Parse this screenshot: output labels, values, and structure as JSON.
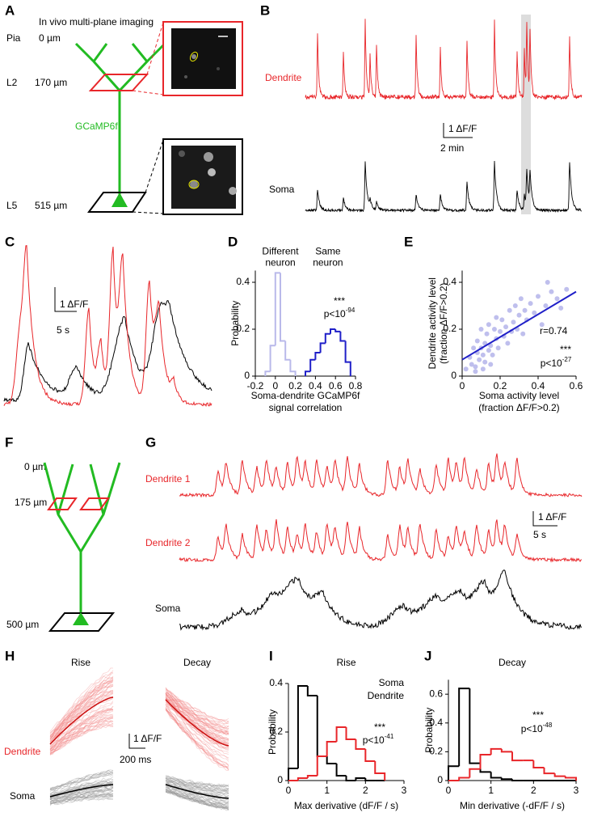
{
  "panels": {
    "A": {
      "letter": "A",
      "title": "In vivo multi-plane imaging",
      "layers": [
        {
          "name": "Pia",
          "depth": "0 µm"
        },
        {
          "name": "L2",
          "depth": "170 µm"
        },
        {
          "name": "L5",
          "depth": "515 µm"
        }
      ],
      "indicator": "GCaMP6f"
    },
    "B": {
      "letter": "B",
      "traces": [
        "Dendrite",
        "Soma"
      ],
      "scale_y": "1 ΔF/F",
      "scale_x": "2 min"
    },
    "C": {
      "letter": "C",
      "scale_y": "1 ΔF/F",
      "scale_x": "5 s"
    },
    "D": {
      "letter": "D"
    },
    "E": {
      "letter": "E"
    },
    "F": {
      "letter": "F",
      "depths": [
        "0 µm",
        "175 µm",
        "500 µm"
      ]
    },
    "G": {
      "letter": "G",
      "traces": [
        "Dendrite 1",
        "Dendrite 2",
        "Soma"
      ],
      "scale_y": "1 ΔF/F",
      "scale_x": "5 s"
    },
    "H": {
      "letter": "H",
      "columns": [
        "Rise",
        "Decay"
      ],
      "traces": [
        "Dendrite",
        "Soma"
      ],
      "scale_y": "1 ΔF/F",
      "scale_x": "200 ms"
    },
    "I": {
      "letter": "I"
    },
    "J": {
      "letter": "J"
    }
  },
  "chart_data": [
    {
      "type": "histogram",
      "xlabel": [
        "Soma-dendrite GCaMP6f",
        "signal correlation"
      ],
      "ylabel": "Probability",
      "xlim": [
        -0.2,
        0.8
      ],
      "xticks": [
        -0.2,
        0,
        0.2,
        0.4,
        0.6,
        0.8
      ],
      "ylim": [
        0,
        0.45
      ],
      "yticks": [
        0,
        0.2,
        0.4
      ],
      "legend": "above",
      "series": [
        {
          "name": "Different neuron",
          "color": "#b9b9ea",
          "bins": [
            -0.1,
            -0.05,
            0,
            0.05,
            0.1,
            0.15,
            0.2
          ],
          "values": [
            0.02,
            0.13,
            0.44,
            0.15,
            0.07,
            0.02
          ]
        },
        {
          "name": "Same neuron",
          "color": "#1f1fc8",
          "bins": [
            0.3,
            0.35,
            0.4,
            0.45,
            0.5,
            0.55,
            0.6,
            0.65,
            0.7,
            0.75
          ],
          "values": [
            0.02,
            0.07,
            0.1,
            0.14,
            0.18,
            0.2,
            0.19,
            0.15,
            0.06
          ]
        }
      ],
      "annotation": {
        "stars": "***",
        "p": "p<10",
        "exp": "-94"
      }
    },
    {
      "type": "scatter",
      "xlabel": [
        "Soma activity level",
        "(fraction ΔF/F>0.2)"
      ],
      "ylabel": [
        "Dendrite activity level",
        "(fraction ΔF/F>0.2)"
      ],
      "xlim": [
        0,
        0.6
      ],
      "xticks": [
        0,
        0.2,
        0.4,
        0.6
      ],
      "ylim": [
        0,
        0.45
      ],
      "yticks": [
        0,
        0.2,
        0.4
      ],
      "color": "#b4b4ea",
      "fit_color": "#1f1fc8",
      "x": [
        0.02,
        0.04,
        0.05,
        0.06,
        0.07,
        0.08,
        0.08,
        0.09,
        0.1,
        0.1,
        0.11,
        0.12,
        0.12,
        0.13,
        0.14,
        0.14,
        0.15,
        0.16,
        0.17,
        0.18,
        0.18,
        0.19,
        0.2,
        0.21,
        0.22,
        0.23,
        0.24,
        0.25,
        0.26,
        0.27,
        0.28,
        0.29,
        0.3,
        0.31,
        0.32,
        0.33,
        0.34,
        0.36,
        0.38,
        0.4,
        0.42,
        0.44,
        0.45,
        0.47,
        0.5,
        0.52,
        0.55,
        0.07,
        0.11,
        0.15
      ],
      "values": [
        0.03,
        0.08,
        0.05,
        0.12,
        0.04,
        0.1,
        0.15,
        0.07,
        0.12,
        0.2,
        0.09,
        0.14,
        0.06,
        0.18,
        0.11,
        0.22,
        0.13,
        0.09,
        0.2,
        0.16,
        0.25,
        0.12,
        0.19,
        0.24,
        0.17,
        0.21,
        0.14,
        0.28,
        0.19,
        0.23,
        0.3,
        0.2,
        0.26,
        0.33,
        0.18,
        0.28,
        0.24,
        0.31,
        0.27,
        0.34,
        0.22,
        0.3,
        0.4,
        0.36,
        0.33,
        0.29,
        0.37,
        0.02,
        0.03,
        0.05
      ],
      "fit": {
        "x": [
          0,
          0.6
        ],
        "y": [
          0.07,
          0.36
        ]
      },
      "annotation": {
        "r": "r=0.74",
        "stars": "***",
        "p": "p<10",
        "exp": "-27"
      }
    },
    {
      "type": "histogram",
      "title": "Rise",
      "xlabel": "Max derivative (dF/F / s)",
      "ylabel": "Probability",
      "xlim": [
        0,
        3
      ],
      "xticks": [
        0,
        1,
        2,
        3
      ],
      "ylim": [
        0,
        0.4
      ],
      "yticks": [
        0,
        0.2,
        0.4
      ],
      "legend": "top-right",
      "series": [
        {
          "name": "Soma",
          "color": "#000000",
          "bins": [
            0,
            0.25,
            0.5,
            0.75,
            1,
            1.25,
            1.5,
            1.75,
            2,
            2.25,
            2.5
          ],
          "values": [
            0.05,
            0.39,
            0.35,
            0.1,
            0.07,
            0.02,
            0,
            0.01,
            0,
            0
          ]
        },
        {
          "name": "Dendrite",
          "color": "#e8262a",
          "bins": [
            0,
            0.25,
            0.5,
            0.75,
            1,
            1.25,
            1.5,
            1.75,
            2,
            2.25,
            2.5
          ],
          "values": [
            0,
            0.01,
            0.02,
            0.1,
            0.16,
            0.22,
            0.17,
            0.13,
            0.08,
            0.03
          ]
        }
      ],
      "annotation": {
        "stars": "***",
        "p": "p<10",
        "exp": "-41"
      }
    },
    {
      "type": "histogram",
      "title": "Decay",
      "xlabel": "Min derivative (-dF/F / s)",
      "ylabel": "Probability",
      "xlim": [
        0,
        3
      ],
      "xticks": [
        0,
        1,
        2,
        3
      ],
      "ylim": [
        0,
        0.7
      ],
      "yticks": [
        0,
        0.2,
        0.4,
        0.6
      ],
      "series": [
        {
          "name": "Soma",
          "color": "#000000",
          "bins": [
            0,
            0.25,
            0.5,
            0.75,
            1,
            1.25,
            1.5,
            1.75,
            2,
            2.25,
            2.5,
            2.75,
            3
          ],
          "values": [
            0.1,
            0.64,
            0.12,
            0.06,
            0.02,
            0.01,
            0,
            0,
            0,
            0,
            0,
            0
          ]
        },
        {
          "name": "Dendrite",
          "color": "#e8262a",
          "bins": [
            0,
            0.25,
            0.5,
            0.75,
            1,
            1.25,
            1.5,
            1.75,
            2,
            2.25,
            2.5,
            2.75,
            3
          ],
          "values": [
            0,
            0.02,
            0.08,
            0.18,
            0.22,
            0.2,
            0.14,
            0.14,
            0.09,
            0.05,
            0.03,
            0.02
          ]
        }
      ],
      "annotation": {
        "stars": "***",
        "p": "p<10",
        "exp": "-48"
      }
    }
  ]
}
